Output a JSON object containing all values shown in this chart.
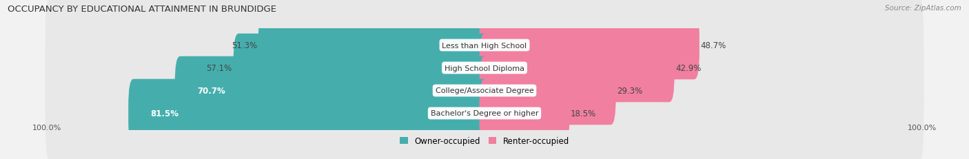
{
  "title": "OCCUPANCY BY EDUCATIONAL ATTAINMENT IN BRUNDIDGE",
  "source": "Source: ZipAtlas.com",
  "categories": [
    "Less than High School",
    "High School Diploma",
    "College/Associate Degree",
    "Bachelor's Degree or higher"
  ],
  "owner_pct": [
    51.3,
    57.1,
    70.7,
    81.5
  ],
  "renter_pct": [
    48.7,
    42.9,
    29.3,
    18.5
  ],
  "owner_color": "#45AEAD",
  "renter_color": "#F07FA0",
  "bar_height": 0.62,
  "background_color": "#f2f2f2",
  "bar_bg_color": "#e2e2e2",
  "row_bg_color": "#e8e8e8",
  "axis_label_left": "100.0%",
  "axis_label_right": "100.0%",
  "legend_owner": "Owner-occupied",
  "legend_renter": "Renter-occupied"
}
